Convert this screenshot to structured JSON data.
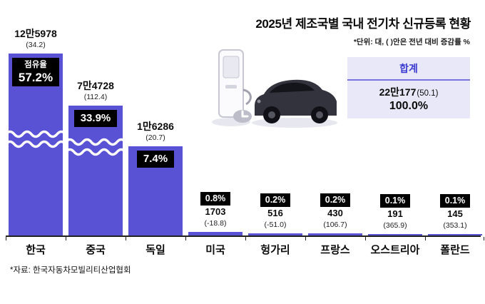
{
  "header": {
    "title": "2025년 제조국별 국내 전기차 신규등록 현황",
    "unit_note": "*단위: 대, ( )안은 전년 대비 증감률 %"
  },
  "total_box": {
    "label": "합계",
    "value": "22만177",
    "change": "(50.1)",
    "share": "100.0%"
  },
  "share_title": "점유율",
  "source": "*자료: 한국자동차모빌리티산업협회",
  "colors": {
    "bar": "#5a52d5",
    "badge_bg": "#000000",
    "badge_text": "#ffffff",
    "total_box_bg": "#e9e8f8",
    "total_label_text": "#3b3bd1"
  },
  "chart_data": {
    "type": "bar",
    "title": "2025년 제조국별 국내 전기차 신규등록 현황",
    "unit": "대",
    "categories": [
      "한국",
      "중국",
      "독일",
      "미국",
      "헝가리",
      "프랑스",
      "오스트리아",
      "폴란드"
    ],
    "values": [
      125978,
      74728,
      16286,
      1703,
      516,
      430,
      191,
      145
    ],
    "value_labels": [
      "12만5978",
      "7만4728",
      "1만6286",
      "1703",
      "516",
      "430",
      "191",
      "145"
    ],
    "yoy_change_pct": [
      34.2,
      112.4,
      20.7,
      -18.8,
      -51.0,
      106.7,
      365.9,
      353.1
    ],
    "change_labels": [
      "(34.2)",
      "(112.4)",
      "(20.7)",
      "(-18.8)",
      "(-51.0)",
      "(106.7)",
      "(365.9)",
      "(353.1)"
    ],
    "share_pct": [
      57.2,
      33.9,
      7.4,
      0.8,
      0.2,
      0.2,
      0.1,
      0.1
    ],
    "share_labels": [
      "57.2%",
      "33.9%",
      "7.4%",
      "0.8%",
      "0.2%",
      "0.2%",
      "0.1%",
      "0.1%"
    ],
    "total": {
      "value": 220177,
      "yoy_change_pct": 50.1,
      "share_pct": 100.0
    },
    "axis_break_bars": [
      "한국",
      "중국"
    ],
    "legend": false,
    "grid": false
  }
}
